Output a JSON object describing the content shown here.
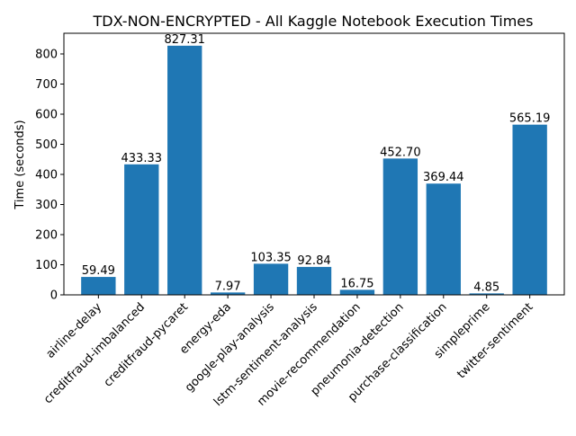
{
  "chart_data": {
    "type": "bar",
    "title": "TDX-NON-ENCRYPTED - All Kaggle Notebook Execution Times",
    "xlabel": "",
    "ylabel": "Time (seconds)",
    "ylim": [
      0,
      868.68
    ],
    "yticks": [
      0,
      100,
      200,
      300,
      400,
      500,
      600,
      700,
      800
    ],
    "grid": false,
    "legend": "none",
    "bar_color": "#1f77b4",
    "categories": [
      "airline-delay",
      "creditfraud-imbalanced",
      "creditfraud-pycaret",
      "energy-eda",
      "google-play-analysis",
      "lstm-sentiment-analysis",
      "movie-recommendation",
      "pneumonia-detection",
      "purchase-classification",
      "simpleprime",
      "twitter-sentiment"
    ],
    "values": [
      59.49,
      433.33,
      827.31,
      7.97,
      103.35,
      92.84,
      16.75,
      452.7,
      369.44,
      4.85,
      565.19
    ],
    "value_labels": [
      "59.49",
      "433.33",
      "827.31",
      "7.97",
      "103.35",
      "92.84",
      "16.75",
      "452.70",
      "369.44",
      "4.85",
      "565.19"
    ]
  }
}
